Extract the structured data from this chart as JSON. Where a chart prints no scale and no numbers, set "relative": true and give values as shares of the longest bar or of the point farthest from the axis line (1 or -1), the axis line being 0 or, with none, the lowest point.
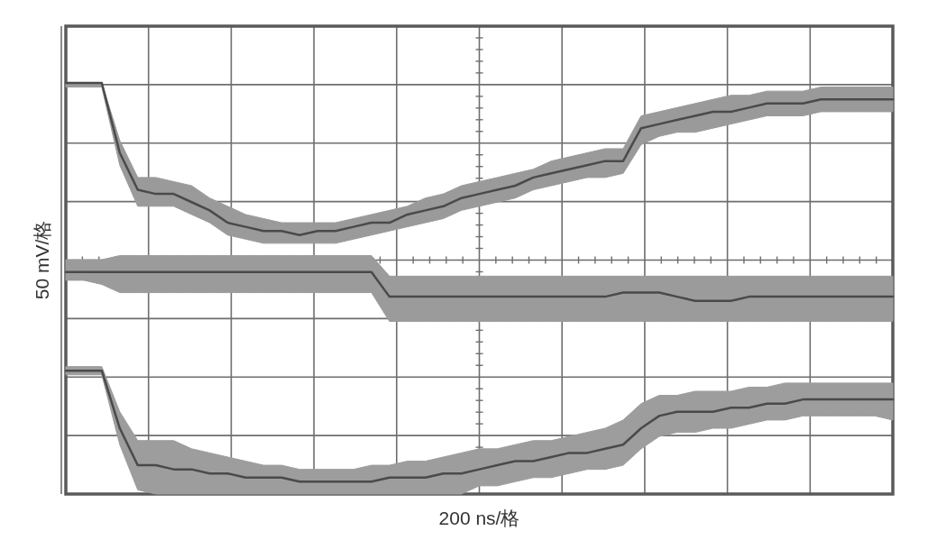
{
  "chart_data": {
    "type": "line",
    "relative": true,
    "grid": true,
    "xlabel": "200 ns/格",
    "ylabel": "50 mV/格",
    "categories": [
      null,
      null,
      null,
      null,
      null,
      null,
      null,
      null,
      null,
      null,
      null,
      null,
      null,
      null,
      null,
      null,
      null,
      null,
      null,
      null,
      null,
      null,
      null,
      null,
      null,
      null,
      null,
      null,
      null,
      null,
      null,
      null,
      null,
      null,
      null,
      null,
      null,
      null,
      null,
      null,
      null,
      null,
      null,
      null,
      null,
      null,
      null
    ],
    "series": [
      {
        "color": "#4a4a4a",
        "values": [
          1,
          1,
          1,
          0.83,
          0.74,
          0.73,
          0.73,
          0.71,
          0.69,
          0.66,
          0.65,
          0.64,
          0.64,
          0.63,
          0.64,
          0.64,
          0.65,
          0.66,
          0.66,
          0.68,
          0.69,
          0.7,
          0.72,
          0.73,
          0.74,
          0.75,
          0.77,
          0.78,
          0.79,
          0.8,
          0.81,
          0.81,
          0.89,
          0.9,
          0.91,
          0.92,
          0.93,
          0.93,
          0.94,
          0.95,
          0.95,
          0.95,
          0.96,
          0.96,
          0.96,
          0.96,
          0.96
        ],
        "upper": [
          1,
          1,
          1,
          0.86,
          0.77,
          0.77,
          0.76,
          0.75,
          0.72,
          0.7,
          0.68,
          0.67,
          0.66,
          0.66,
          0.66,
          0.66,
          0.67,
          0.68,
          0.69,
          0.7,
          0.72,
          0.73,
          0.75,
          0.76,
          0.77,
          0.78,
          0.79,
          0.81,
          0.82,
          0.83,
          0.84,
          0.84,
          0.92,
          0.93,
          0.94,
          0.95,
          0.96,
          0.97,
          0.97,
          0.98,
          0.98,
          0.98,
          0.99,
          0.99,
          0.99,
          0.99,
          0.99
        ],
        "lower": [
          0.99,
          0.99,
          0.99,
          0.8,
          0.7,
          0.7,
          0.7,
          0.68,
          0.66,
          0.63,
          0.62,
          0.61,
          0.61,
          0.61,
          0.61,
          0.61,
          0.62,
          0.63,
          0.64,
          0.65,
          0.66,
          0.67,
          0.69,
          0.7,
          0.71,
          0.72,
          0.74,
          0.75,
          0.76,
          0.77,
          0.77,
          0.78,
          0.85,
          0.87,
          0.88,
          0.88,
          0.89,
          0.9,
          0.91,
          0.92,
          0.92,
          0.92,
          0.93,
          0.93,
          0.93,
          0.93,
          0.93
        ]
      },
      {
        "color": "#4a4a4a",
        "values": [
          0.54,
          0.54,
          0.54,
          0.54,
          0.54,
          0.54,
          0.54,
          0.54,
          0.54,
          0.54,
          0.54,
          0.54,
          0.54,
          0.54,
          0.54,
          0.54,
          0.54,
          0.54,
          0.48,
          0.48,
          0.48,
          0.48,
          0.48,
          0.48,
          0.48,
          0.48,
          0.48,
          0.48,
          0.48,
          0.48,
          0.48,
          0.49,
          0.49,
          0.49,
          0.48,
          0.47,
          0.47,
          0.47,
          0.48,
          0.48,
          0.48,
          0.48,
          0.48,
          0.48,
          0.48,
          0.48,
          0.48
        ],
        "upper": [
          0.57,
          0.57,
          0.57,
          0.58,
          0.58,
          0.58,
          0.58,
          0.58,
          0.58,
          0.58,
          0.58,
          0.58,
          0.58,
          0.58,
          0.58,
          0.58,
          0.58,
          0.58,
          0.53,
          0.53,
          0.53,
          0.53,
          0.53,
          0.53,
          0.53,
          0.53,
          0.53,
          0.53,
          0.53,
          0.53,
          0.53,
          0.53,
          0.53,
          0.53,
          0.53,
          0.53,
          0.53,
          0.53,
          0.53,
          0.53,
          0.53,
          0.53,
          0.53,
          0.53,
          0.53,
          0.53,
          0.53
        ],
        "lower": [
          0.52,
          0.52,
          0.51,
          0.49,
          0.49,
          0.49,
          0.49,
          0.49,
          0.49,
          0.49,
          0.49,
          0.49,
          0.49,
          0.49,
          0.49,
          0.49,
          0.49,
          0.49,
          0.42,
          0.42,
          0.42,
          0.42,
          0.42,
          0.42,
          0.42,
          0.42,
          0.42,
          0.42,
          0.42,
          0.42,
          0.42,
          0.42,
          0.42,
          0.42,
          0.42,
          0.42,
          0.42,
          0.42,
          0.42,
          0.42,
          0.42,
          0.42,
          0.42,
          0.42,
          0.42,
          0.42,
          0.42
        ]
      },
      {
        "color": "#4a4a4a",
        "values": [
          0.3,
          0.3,
          0.3,
          0.16,
          0.07,
          0.07,
          0.06,
          0.06,
          0.05,
          0.05,
          0.04,
          0.04,
          0.04,
          0.03,
          0.03,
          0.03,
          0.03,
          0.03,
          0.04,
          0.04,
          0.04,
          0.05,
          0.05,
          0.06,
          0.07,
          0.08,
          0.08,
          0.09,
          0.1,
          0.1,
          0.11,
          0.12,
          0.16,
          0.19,
          0.2,
          0.2,
          0.2,
          0.21,
          0.21,
          0.22,
          0.22,
          0.23,
          0.23,
          0.23,
          0.23,
          0.23,
          0.23
        ],
        "upper": [
          0.31,
          0.31,
          0.31,
          0.2,
          0.13,
          0.13,
          0.13,
          0.11,
          0.1,
          0.09,
          0.08,
          0.07,
          0.07,
          0.06,
          0.06,
          0.06,
          0.06,
          0.07,
          0.07,
          0.08,
          0.08,
          0.09,
          0.1,
          0.11,
          0.11,
          0.12,
          0.13,
          0.13,
          0.14,
          0.15,
          0.16,
          0.18,
          0.22,
          0.24,
          0.24,
          0.25,
          0.25,
          0.25,
          0.26,
          0.26,
          0.27,
          0.27,
          0.27,
          0.27,
          0.27,
          0.27,
          0.27
        ],
        "lower": [
          0.29,
          0.29,
          0.29,
          0.12,
          0.01,
          0,
          0,
          0,
          0,
          0,
          0,
          0,
          0,
          0,
          0,
          0,
          0,
          0,
          0,
          0,
          0,
          0,
          0,
          0.02,
          0.02,
          0.03,
          0.04,
          0.04,
          0.05,
          0.06,
          0.06,
          0.07,
          0.11,
          0.14,
          0.15,
          0.15,
          0.16,
          0.16,
          0.17,
          0.18,
          0.18,
          0.19,
          0.19,
          0.19,
          0.19,
          0.19,
          0.18
        ]
      }
    ]
  }
}
